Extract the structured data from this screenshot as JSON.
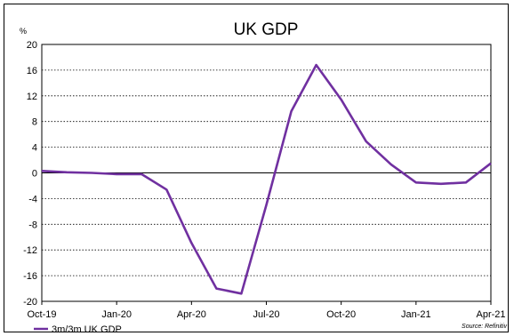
{
  "chart_data": {
    "type": "line",
    "title": "UK GDP",
    "ylabel": "%",
    "ylim": [
      -20,
      20
    ],
    "yticks": [
      20,
      16,
      12,
      8,
      4,
      0,
      -4,
      -8,
      -12,
      -16,
      -20
    ],
    "xticklabels": [
      "Oct-19",
      "Jan-20",
      "Apr-20",
      "Jul-20",
      "Oct-20",
      "Jan-21",
      "Apr-21"
    ],
    "x": [
      "Oct-19",
      "Nov-19",
      "Dec-19",
      "Jan-20",
      "Feb-20",
      "Mar-20",
      "Apr-20",
      "May-20",
      "Jun-20",
      "Jul-20",
      "Aug-20",
      "Sep-20",
      "Oct-20",
      "Nov-20",
      "Dec-20",
      "Jan-21",
      "Feb-21",
      "Mar-21",
      "Apr-21"
    ],
    "series": [
      {
        "name": "3m/3m UK GDP",
        "color": "#7030a0",
        "values": [
          0.3,
          0.1,
          0.0,
          -0.2,
          -0.2,
          -2.6,
          -10.9,
          -18.0,
          -18.8,
          -5.0,
          9.6,
          16.8,
          11.4,
          4.9,
          1.3,
          -1.5,
          -1.7,
          -1.5,
          1.5
        ]
      }
    ],
    "grid": {
      "y": true,
      "style": "dotted"
    },
    "legend": "bottom-left",
    "source": "Source: Refinitiv"
  }
}
